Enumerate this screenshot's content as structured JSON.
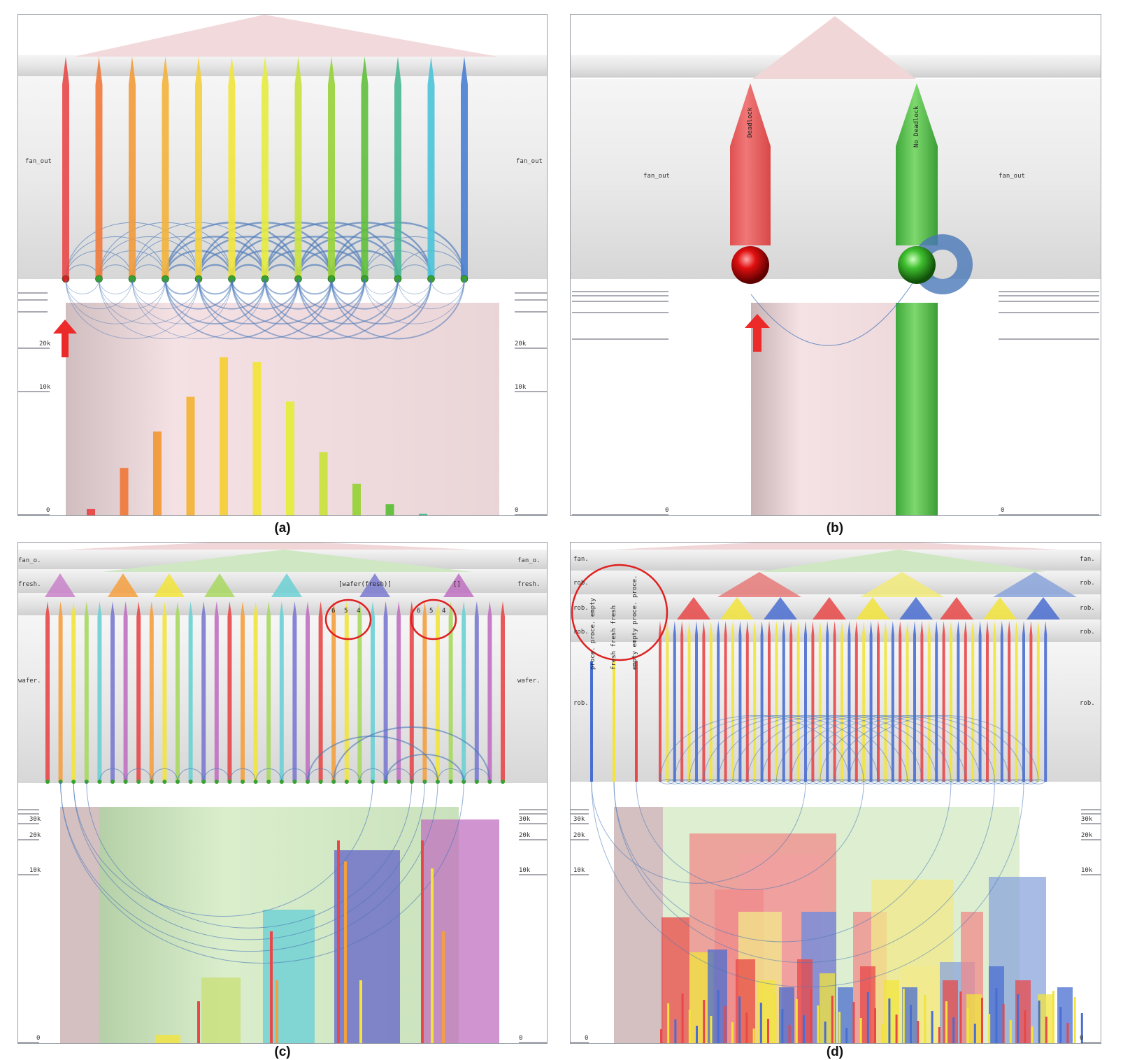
{
  "panels": {
    "a": {
      "caption": "(a)",
      "side_label": "fan_out",
      "ticks": [
        "20k",
        "10k",
        "0"
      ],
      "bars": [
        0.04,
        0.3,
        0.53,
        0.75,
        1.0,
        0.97,
        0.72,
        0.4,
        0.2,
        0.07,
        0.01,
        0,
        0
      ],
      "colors": [
        "#e84848",
        "#ef7a3c",
        "#f29a3a",
        "#f3b33a",
        "#f4cf3c",
        "#f2e43c",
        "#e5ec3e",
        "#c9e23e",
        "#98d23a",
        "#5fbf3a",
        "#49b894",
        "#4bc3d8",
        "#4a7fd0"
      ]
    },
    "b": {
      "caption": "(b)",
      "side_label": "fan_out",
      "node_labels": [
        "Deadlock",
        "No Deadlock"
      ],
      "ticks": [
        "0"
      ]
    },
    "c": {
      "caption": "(c)",
      "labels_left": [
        "fan_o.",
        "fresh.",
        "wafer."
      ],
      "labels_right": [
        "fan_o.",
        "fresh.",
        "wafer."
      ],
      "node_caption": "[wafer(fresh)]",
      "node_caption_2": "[]",
      "circled_numbers": [
        "6",
        "5",
        "4"
      ],
      "ticks": [
        "30k",
        "20k",
        "10k",
        "0"
      ]
    },
    "d": {
      "caption": "(d)",
      "labels_left": [
        "fan.",
        "rob.",
        "rob.",
        "rob.",
        "rob."
      ],
      "labels_right": [
        "fan.",
        "rob.",
        "rob.",
        "rob.",
        "rob."
      ],
      "circled_words": [
        "proce. proce. empty",
        "fresh fresh fresh",
        "empty empty proce. proce."
      ],
      "ticks": [
        "30k",
        "20k",
        "10k",
        "0"
      ]
    }
  }
}
